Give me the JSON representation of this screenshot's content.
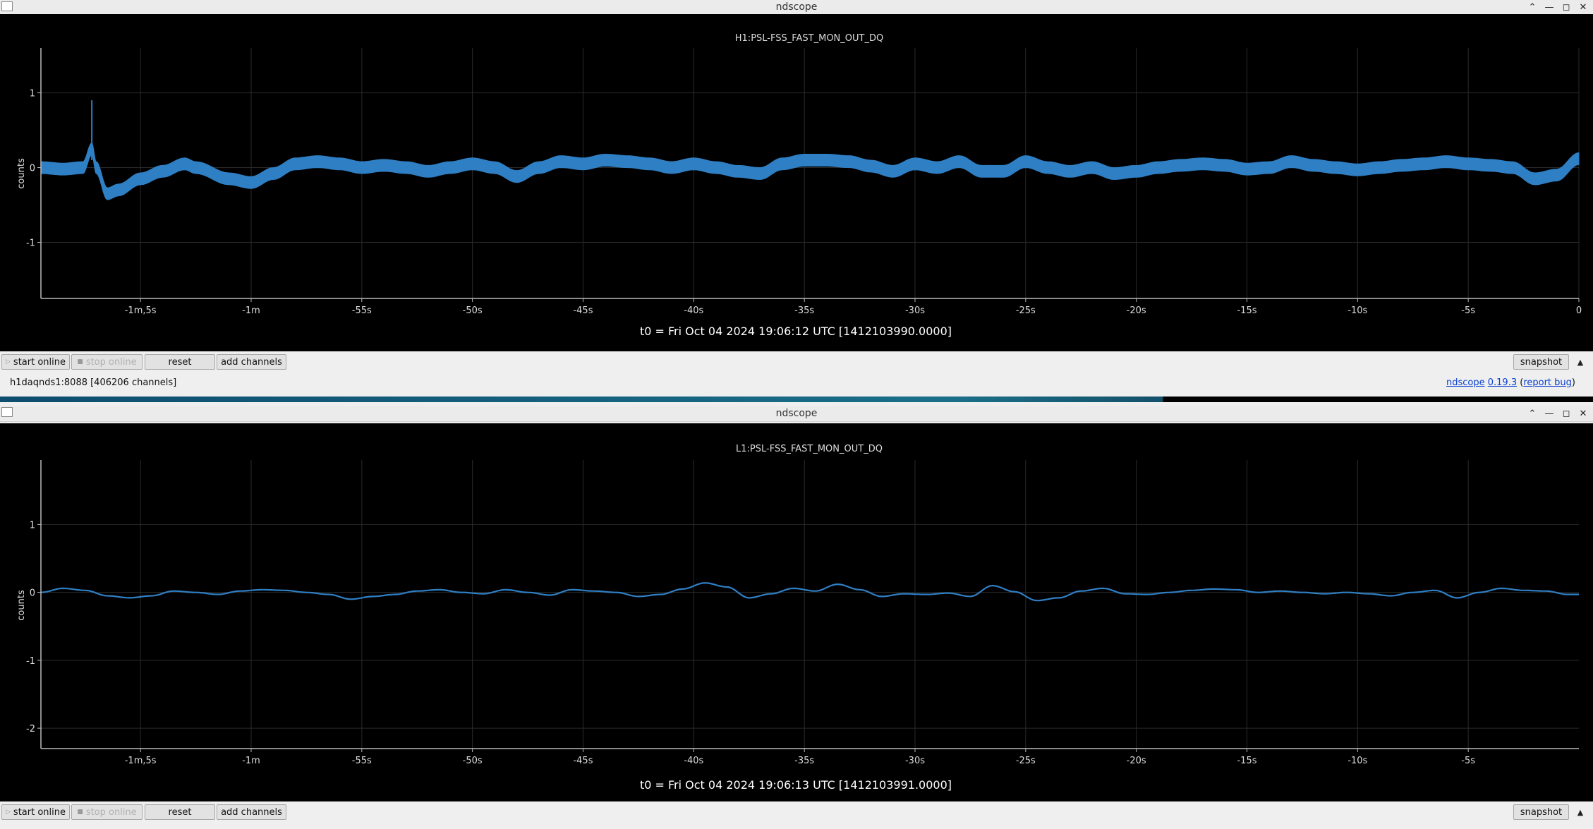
{
  "windows": [
    {
      "title": "ndscope",
      "channel": "H1:PSL-FSS_FAST_MON_OUT_DQ",
      "ylabel": "counts",
      "t0_text": "t0 = Fri Oct 04 2024 19:06:12 UTC [1412103990.0000]",
      "yticks": [
        "1",
        "0",
        "-1"
      ],
      "xticks": [
        "-1m,5s",
        "-1m",
        "-55s",
        "-50s",
        "-45s",
        "-40s",
        "-35s",
        "-30s",
        "-25s",
        "-20s",
        "-15s",
        "-10s",
        "-5s",
        "0"
      ],
      "buttons": {
        "start": "start online",
        "stop": "stop online",
        "reset": "reset",
        "add": "add channels",
        "snapshot": "snapshot"
      }
    },
    {
      "title": "ndscope",
      "channel": "L1:PSL-FSS_FAST_MON_OUT_DQ",
      "ylabel": "counts",
      "t0_text": "t0 = Fri Oct 04 2024 19:06:13 UTC [1412103991.0000]",
      "yticks": [
        "1",
        "0",
        "-1",
        "-2"
      ],
      "xticks": [
        "-1m,5s",
        "-1m",
        "-55s",
        "-50s",
        "-45s",
        "-40s",
        "-35s",
        "-30s",
        "-25s",
        "-20s",
        "-15s",
        "-10s",
        "-5s"
      ],
      "buttons": {
        "start": "start online",
        "stop": "stop online",
        "reset": "reset",
        "add": "add channels",
        "snapshot": "snapshot"
      }
    }
  ],
  "status": {
    "server": "h1daqnds1:8088  [406206 channels]",
    "app_link": "ndscope",
    "version_link": "0.19.3",
    "bug_link": "report bug"
  },
  "colors": {
    "trace": "#2f7fc4",
    "background": "#000000",
    "axis": "#cccccc"
  },
  "chart_data": [
    {
      "type": "line",
      "title": "H1:PSL-FSS_FAST_MON_OUT_DQ",
      "xlabel": "",
      "ylabel": "counts",
      "x_unit": "s",
      "xlim": [
        -69.5,
        0
      ],
      "ylim": [
        -1.75,
        1.6
      ],
      "grid": true,
      "band_halfwidth": 0.08,
      "series": [
        {
          "x": [
            -69.5,
            -68.5,
            -67.6,
            -67.2,
            -67.0,
            -66.5,
            -66.0,
            -65.0,
            -64.0,
            -63.0,
            -62.5,
            -61.0,
            -60.0,
            -59.0,
            -58.0,
            -57.0,
            -56.0,
            -55.0,
            -54.0,
            -53.0,
            -52.0,
            -51.0,
            -50.0,
            -49.0,
            -48.0,
            -47.0,
            -46.0,
            -45.0,
            -44.0,
            -43.0,
            -42.0,
            -41.0,
            -40.0,
            -39.0,
            -38.0,
            -37.0,
            -36.0,
            -35.0,
            -34.0,
            -33.0,
            -32.0,
            -31.0,
            -30.0,
            -29.0,
            -28.0,
            -27.0,
            -26.0,
            -25.0,
            -24.0,
            -23.0,
            -22.0,
            -21.0,
            -20.0,
            -19.0,
            -18.0,
            -17.0,
            -16.0,
            -15.0,
            -14.0,
            -13.0,
            -12.0,
            -11.0,
            -10.0,
            -9.0,
            -8.0,
            -7.0,
            -6.0,
            -5.0,
            -4.0,
            -3.0,
            -2.0,
            -1.0,
            0.0
          ],
          "y": [
            0,
            -0.02,
            0.0,
            0.25,
            0.0,
            -0.35,
            -0.3,
            -0.15,
            -0.05,
            0.05,
            0.0,
            -0.15,
            -0.2,
            -0.08,
            0.05,
            0.08,
            0.05,
            0.0,
            0.03,
            0.0,
            -0.05,
            0.0,
            0.05,
            0.0,
            -0.12,
            0.0,
            0.08,
            0.05,
            0.1,
            0.08,
            0.05,
            0.0,
            0.05,
            0.0,
            -0.05,
            -0.08,
            0.05,
            0.1,
            0.1,
            0.08,
            0.02,
            -0.05,
            0.05,
            0.0,
            0.08,
            -0.05,
            -0.05,
            0.08,
            0.0,
            -0.05,
            0.0,
            -0.08,
            -0.05,
            0.0,
            0.03,
            0.05,
            0.03,
            -0.02,
            0.0,
            0.08,
            0.03,
            0.0,
            -0.03,
            0.0,
            0.03,
            0.05,
            0.08,
            0.05,
            0.03,
            0.0,
            -0.15,
            -0.1,
            0.12
          ]
        }
      ]
    },
    {
      "type": "line",
      "title": "L1:PSL-FSS_FAST_MON_OUT_DQ",
      "xlabel": "",
      "ylabel": "counts",
      "x_unit": "s",
      "xlim": [
        -69.5,
        0
      ],
      "ylim": [
        -2.3,
        1.95
      ],
      "grid": true,
      "series": [
        {
          "x": [
            -69.5,
            -68.5,
            -67.5,
            -66.5,
            -65.5,
            -64.5,
            -63.5,
            -62.5,
            -61.5,
            -60.5,
            -59.5,
            -58.5,
            -57.5,
            -56.5,
            -55.5,
            -54.5,
            -53.5,
            -52.5,
            -51.5,
            -50.5,
            -49.5,
            -48.5,
            -47.5,
            -46.5,
            -45.5,
            -44.5,
            -43.5,
            -42.5,
            -41.5,
            -40.5,
            -39.5,
            -38.5,
            -37.5,
            -36.5,
            -35.5,
            -34.5,
            -33.5,
            -32.5,
            -31.5,
            -30.5,
            -29.5,
            -28.5,
            -27.5,
            -26.5,
            -25.5,
            -24.5,
            -23.5,
            -22.5,
            -21.5,
            -20.5,
            -19.5,
            -18.5,
            -17.5,
            -16.5,
            -15.5,
            -14.5,
            -13.5,
            -12.5,
            -11.5,
            -10.5,
            -9.5,
            -8.5,
            -7.5,
            -6.5,
            -5.5,
            -4.5,
            -3.5,
            -2.5,
            -1.5,
            -0.5,
            0.0
          ],
          "y": [
            0,
            0.06,
            0.03,
            -0.05,
            -0.08,
            -0.05,
            0.02,
            0.0,
            -0.03,
            0.02,
            0.04,
            0.03,
            0.0,
            -0.03,
            -0.1,
            -0.06,
            -0.03,
            0.02,
            0.04,
            0.0,
            -0.02,
            0.04,
            0.0,
            -0.04,
            0.04,
            0.02,
            0.0,
            -0.06,
            -0.03,
            0.05,
            0.14,
            0.08,
            -0.08,
            -0.02,
            0.06,
            0.02,
            0.12,
            0.04,
            -0.06,
            -0.02,
            -0.03,
            -0.01,
            -0.06,
            0.1,
            0.01,
            -0.12,
            -0.08,
            0.02,
            0.06,
            -0.02,
            -0.03,
            0.0,
            0.03,
            0.05,
            0.04,
            0.0,
            0.02,
            0.0,
            -0.02,
            0.0,
            -0.02,
            -0.05,
            0.0,
            0.03,
            -0.08,
            0.0,
            0.06,
            0.03,
            0.02,
            -0.03,
            -0.03
          ]
        }
      ]
    }
  ]
}
